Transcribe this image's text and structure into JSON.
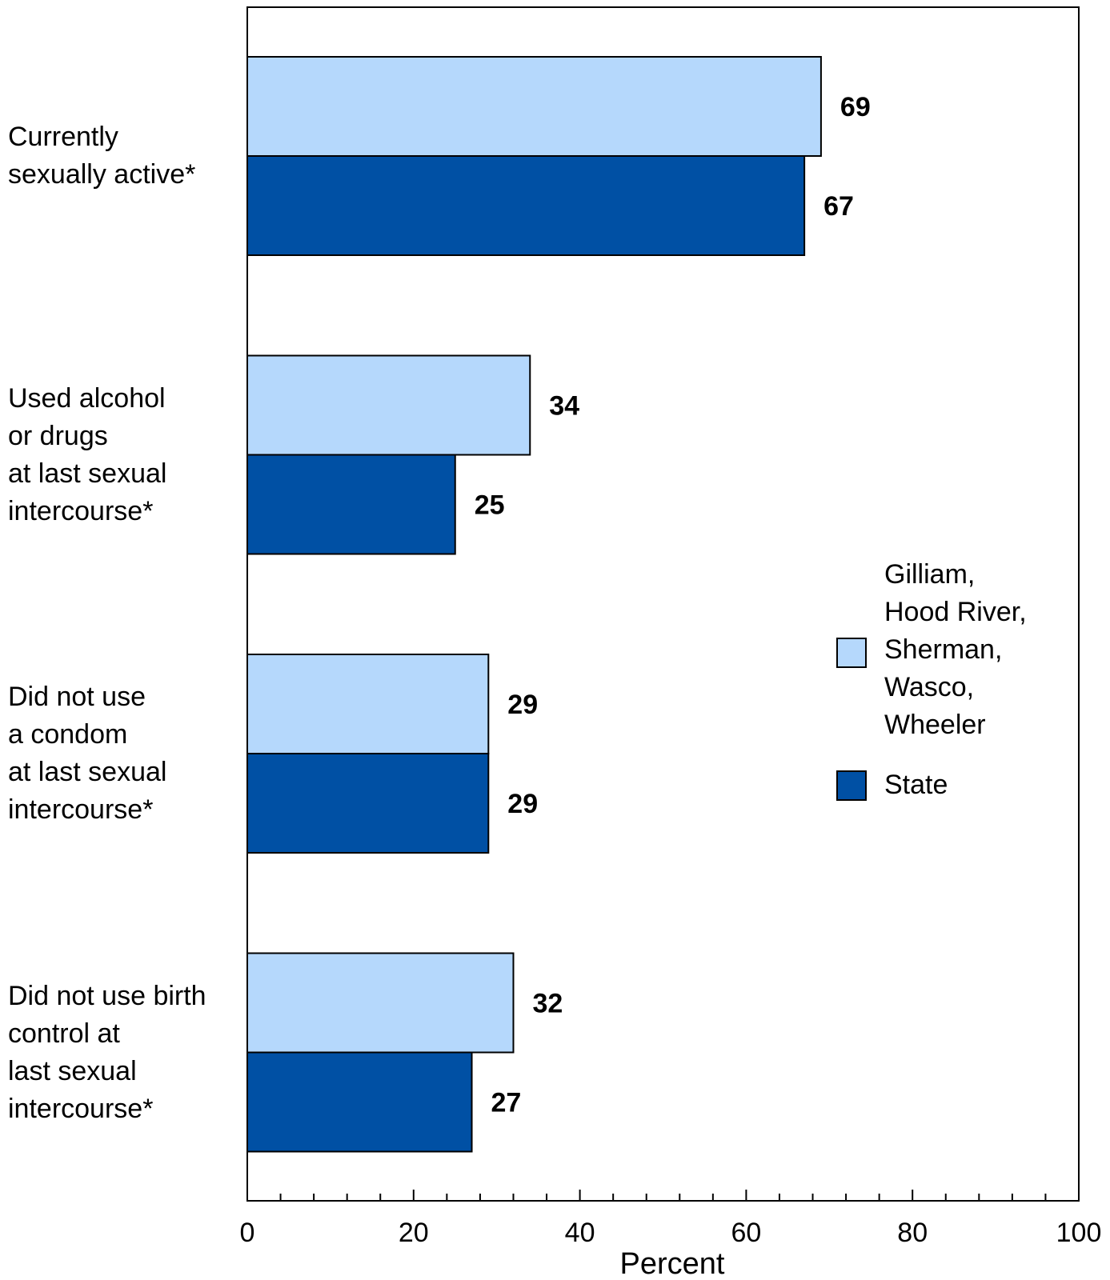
{
  "chart_data": {
    "type": "bar",
    "orientation": "horizontal",
    "categories": [
      "Currently\nsexually active*",
      "Used alcohol\nor drugs\nat last sexual\nintercourse*",
      "Did not use\na condom\nat last sexual\nintercourse*",
      "Did not use birth\ncontrol at\nlast sexual\nintercourse*"
    ],
    "series": [
      {
        "name": "Gilliam,\nHood River,\nSherman,\nWasco,\nWheeler",
        "color": "#b5d8fc",
        "values": [
          69,
          34,
          29,
          32
        ]
      },
      {
        "name": "State",
        "color": "#0050a4",
        "values": [
          67,
          25,
          29,
          27
        ]
      }
    ],
    "xlabel": "Percent",
    "xlim": [
      0,
      100
    ],
    "xticks": [
      0,
      20,
      40,
      60,
      80,
      100
    ],
    "minor_tick_step": 4,
    "data_labels": true,
    "legend_position": "right",
    "grid": false
  }
}
